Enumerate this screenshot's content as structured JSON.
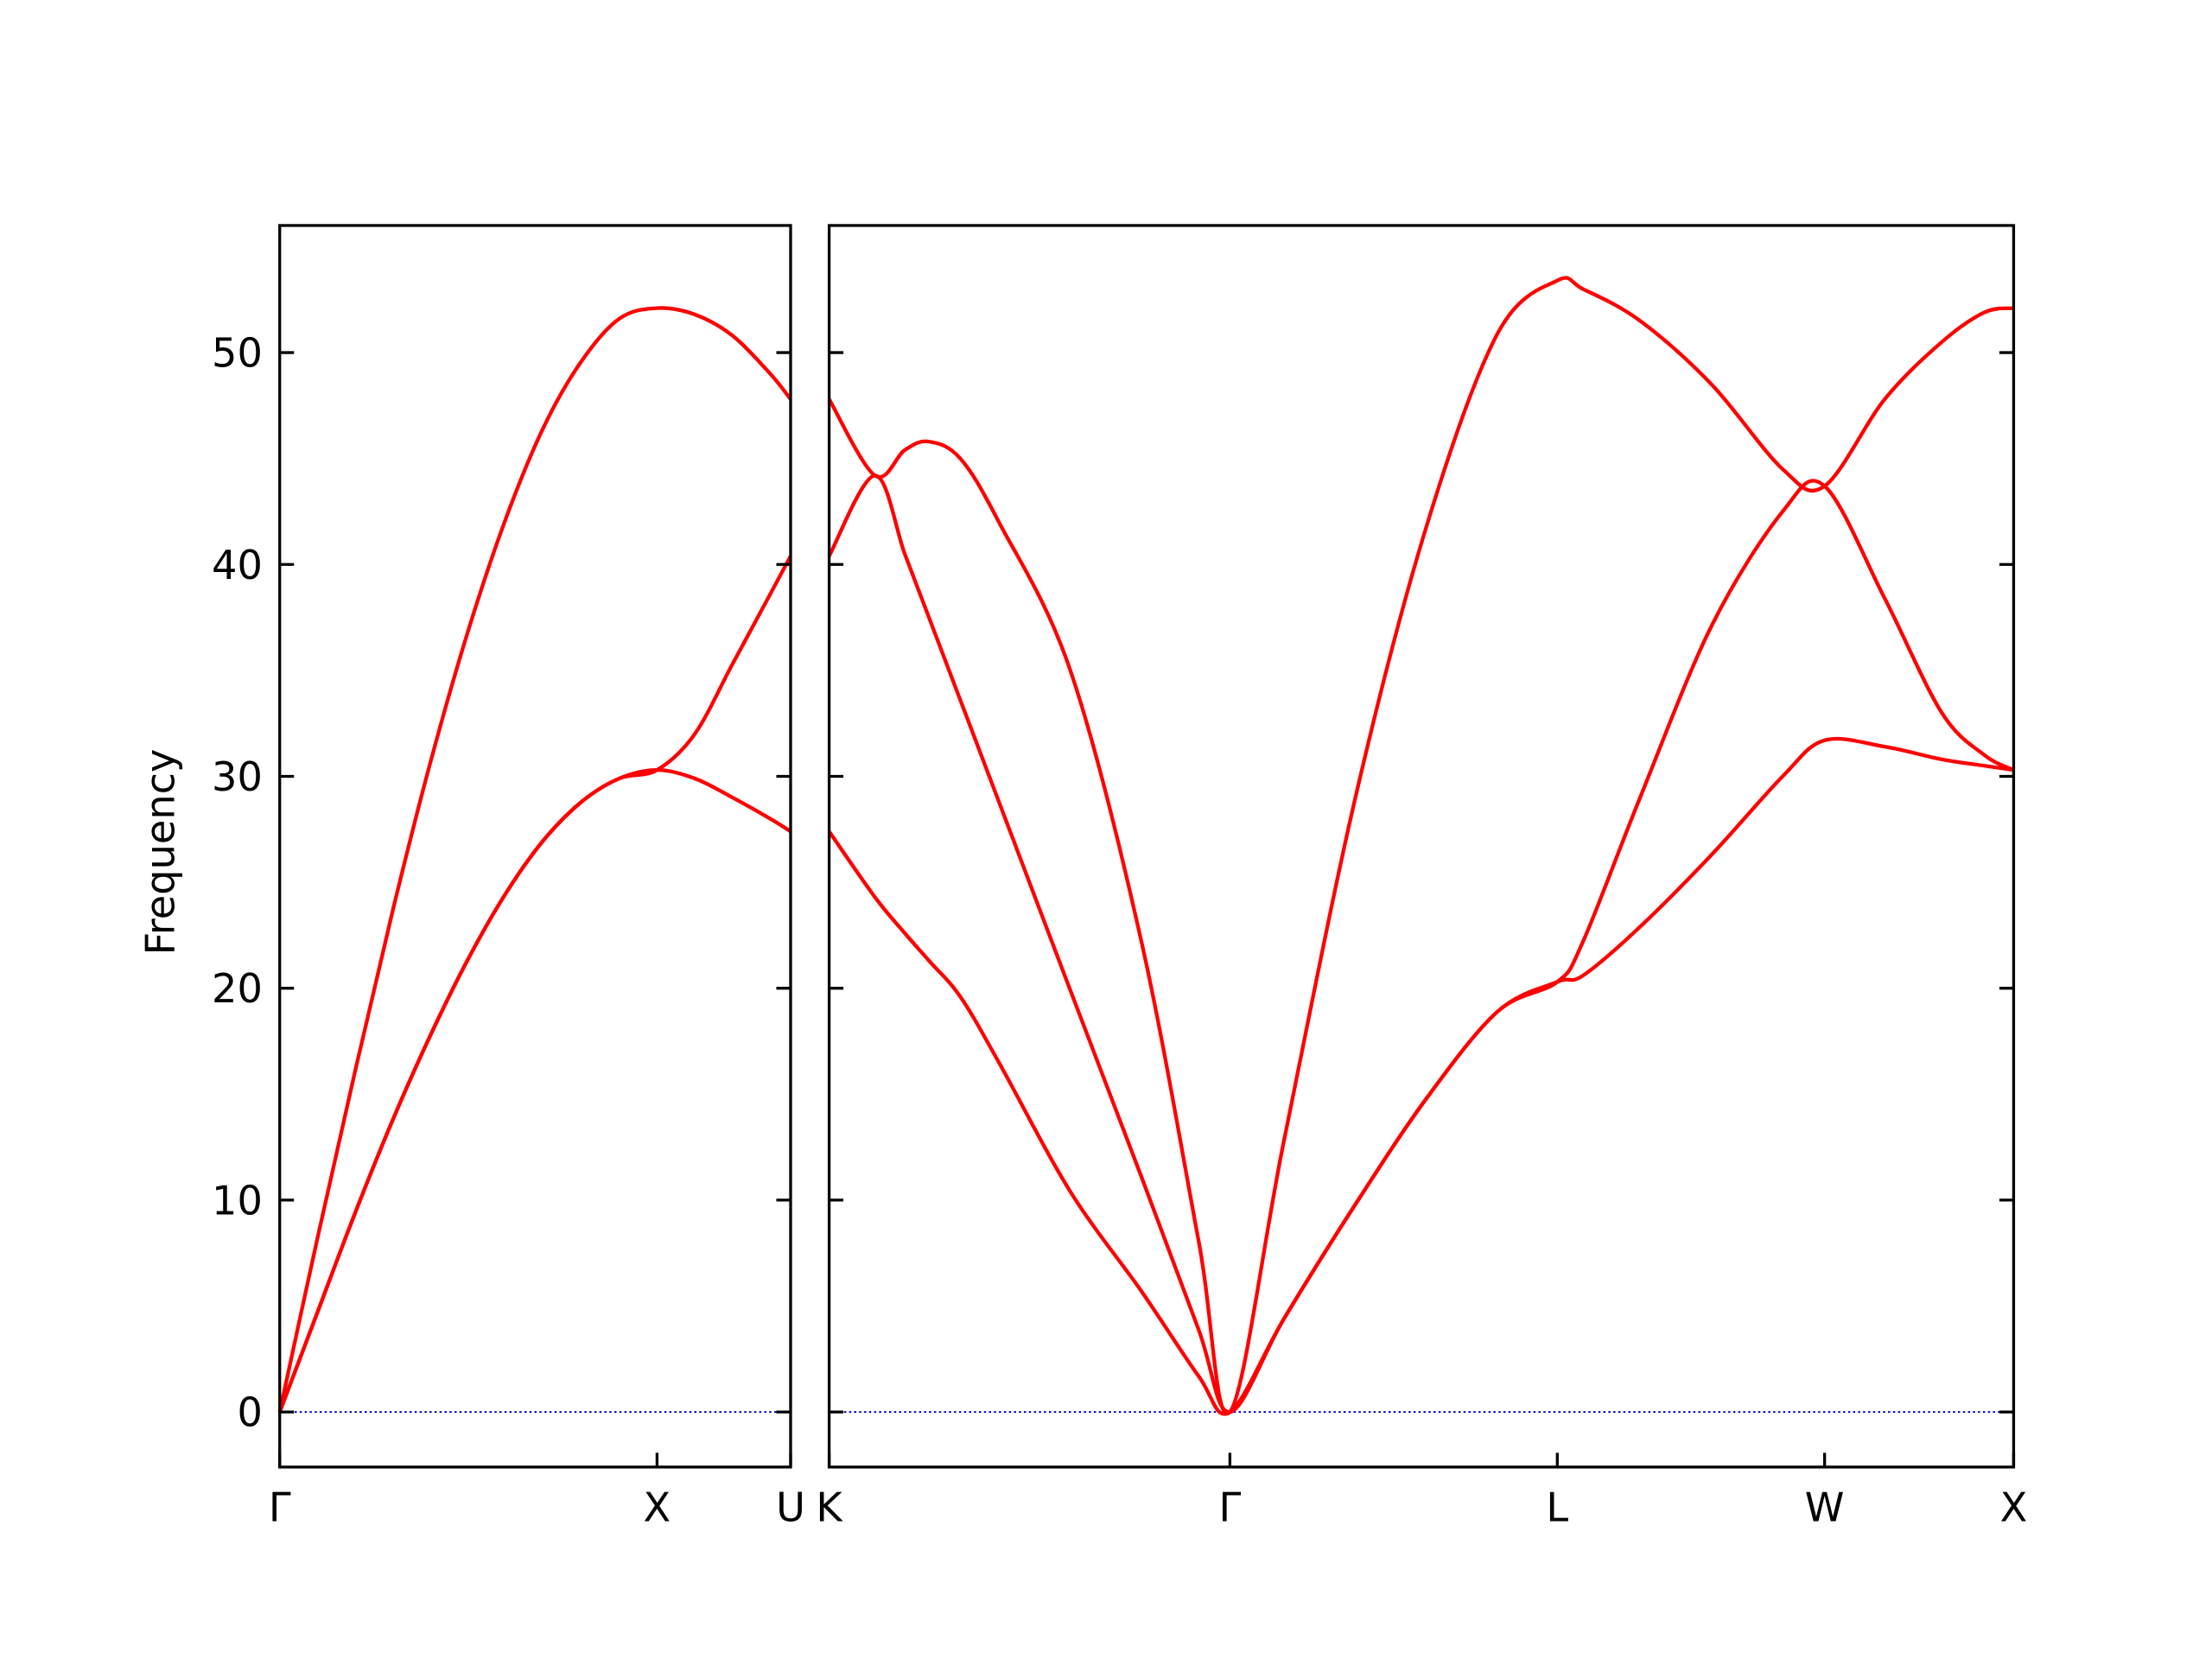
{
  "chart_data": [
    {
      "type": "line",
      "ylabel": "Frequency",
      "x": [
        0,
        0.1,
        0.2,
        0.3,
        0.4,
        0.5,
        0.6,
        0.7,
        0.8,
        0.9,
        1.0,
        1.1,
        1.2,
        1.3,
        1.354
      ],
      "series": [
        {
          "color": "#ff0000",
          "values": [
            0,
            4.7,
            9.4,
            13.8,
            17.8,
            21.4,
            24.5,
            27.0,
            28.8,
            29.9,
            30.3,
            29.9,
            29.0,
            28.0,
            27.4
          ]
        },
        {
          "color": "#ff0000",
          "values": [
            0,
            4.7,
            9.4,
            13.8,
            17.8,
            21.4,
            24.5,
            27.0,
            28.8,
            29.9,
            30.3,
            32.0,
            35.3,
            38.6,
            40.4
          ]
        },
        {
          "color": "#ff0000",
          "values": [
            0,
            8.2,
            16.1,
            23.7,
            30.7,
            36.9,
            42.2,
            46.5,
            49.6,
            51.6,
            52.1,
            51.8,
            50.8,
            49.0,
            47.8
          ]
        }
      ],
      "xlim": [
        0,
        1.354
      ],
      "xticks": [
        {
          "value": 0,
          "label": "Γ"
        },
        {
          "value": 1.0,
          "label": "X"
        },
        {
          "value": 1.354,
          "label": "U"
        }
      ],
      "ylim": [
        -2.6,
        56
      ],
      "yticks": [
        0,
        10,
        20,
        30,
        40,
        50
      ],
      "hline": 0,
      "hline_color": "#0000cc"
    },
    {
      "type": "line",
      "x": [
        1.354,
        1.475,
        1.554,
        1.618,
        1.701,
        1.803,
        1.992,
        2.18,
        2.331,
        2.414,
        2.557,
        2.746,
        2.934,
        3.122,
        3.28,
        3.348,
        3.499,
        3.688,
        3.876,
        3.987,
        4.146,
        4.297,
        4.41,
        4.487
      ],
      "series": [
        {
          "color": "#ff0000",
          "values": [
            27.4,
            24.3,
            22.6,
            21.3,
            19.6,
            16.5,
            10.4,
            5.7,
            1.7,
            0,
            4.4,
            9.8,
            14.8,
            18.9,
            20.3,
            20.6,
            22.9,
            26.3,
            30.0,
            31.7,
            31.4,
            30.8,
            30.5,
            30.3
          ]
        },
        {
          "color": "#ff0000",
          "values": [
            40.4,
            44.2,
            40.5,
            37.5,
            33.6,
            28.8,
            19.9,
            11.1,
            3.9,
            0,
            4.4,
            9.8,
            14.8,
            18.9,
            20.3,
            22.2,
            29.0,
            37.1,
            42.5,
            43.7,
            38.4,
            33.0,
            31.0,
            30.3
          ]
        },
        {
          "color": "#ff0000",
          "values": [
            47.8,
            44.2,
            45.4,
            45.8,
            45.0,
            42.0,
            35.0,
            22.2,
            8.1,
            0,
            12.8,
            29.0,
            41.8,
            50.9,
            53.4,
            53.0,
            51.5,
            48.5,
            44.5,
            43.7,
            47.8,
            50.5,
            51.9,
            52.1
          ]
        }
      ],
      "xlim": [
        1.354,
        4.487
      ],
      "xticks": [
        {
          "value": 1.354,
          "label": "K"
        },
        {
          "value": 2.414,
          "label": "Γ"
        },
        {
          "value": 3.28,
          "label": "L"
        },
        {
          "value": 3.987,
          "label": "W"
        },
        {
          "value": 4.487,
          "label": "X"
        }
      ],
      "ylim": [
        -2.6,
        56
      ],
      "yticks": [
        0,
        10,
        20,
        30,
        40,
        50
      ],
      "show_yticklabels": false,
      "hline": 0,
      "hline_color": "#0000cc"
    }
  ]
}
